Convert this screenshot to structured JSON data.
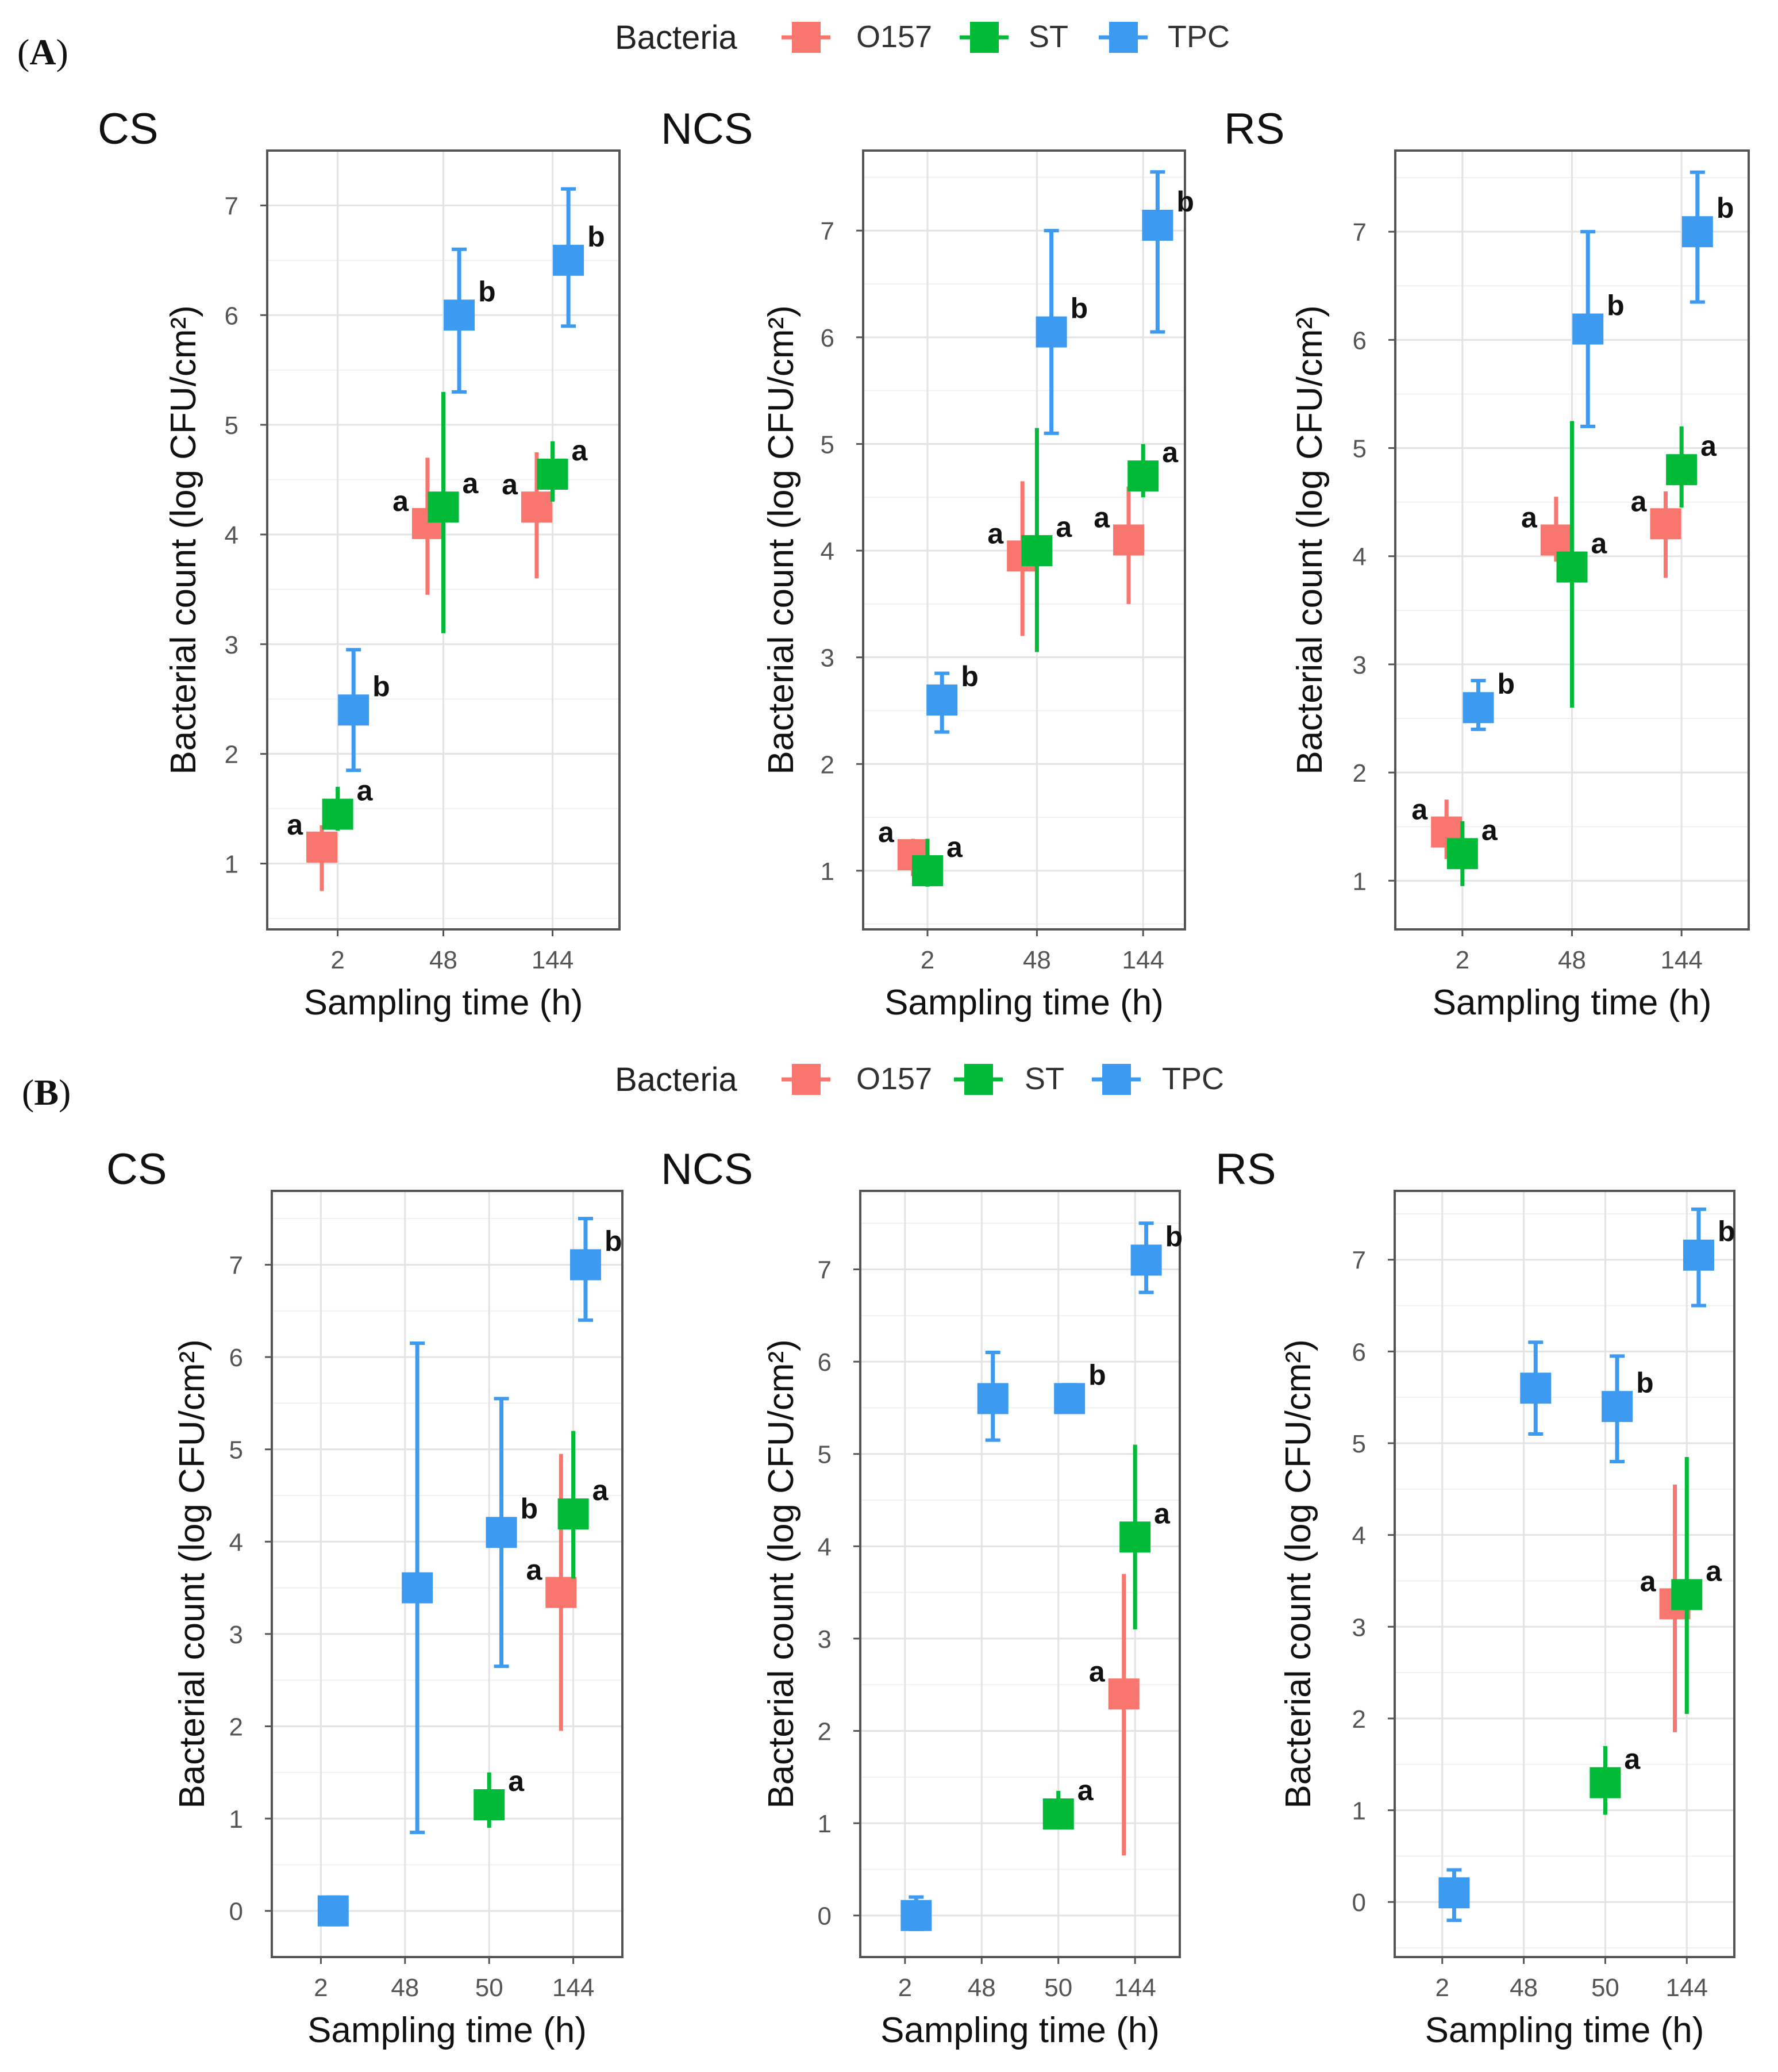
{
  "colors": {
    "O157": "#F8766D",
    "ST": "#00BA38",
    "TPC": "#3C9BF0"
  },
  "panels": [
    {
      "label": "A",
      "legend": {
        "title": "Bacteria",
        "entries": [
          "O157",
          "ST",
          "TPC"
        ]
      }
    },
    {
      "label": "B",
      "legend": {
        "title": "Bacteria",
        "entries": [
          "O157",
          "ST",
          "TPC"
        ]
      }
    }
  ],
  "chart_data": [
    {
      "type": "scatter",
      "panel": "A",
      "title": "CS",
      "xlabel": "Sampling time (h)",
      "ylabel": "Bacterial count (log CFU/cm²)",
      "categories": [
        "2",
        "48",
        "144"
      ],
      "ylim": [
        0.4,
        7.5
      ],
      "yticks": [
        1,
        2,
        3,
        4,
        5,
        6,
        7
      ],
      "series": [
        {
          "name": "O157",
          "points": [
            {
              "x": "2",
              "y": 1.15,
              "lo": 0.75,
              "hi": 1.35,
              "label": "a"
            },
            {
              "x": "48",
              "y": 4.1,
              "lo": 3.45,
              "hi": 4.7,
              "label": "a"
            },
            {
              "x": "144",
              "y": 4.25,
              "lo": 3.6,
              "hi": 4.75,
              "label": "a"
            }
          ]
        },
        {
          "name": "ST",
          "points": [
            {
              "x": "2",
              "y": 1.45,
              "lo": 1.3,
              "hi": 1.7,
              "label": "a"
            },
            {
              "x": "48",
              "y": 4.25,
              "lo": 3.1,
              "hi": 5.3,
              "label": "a"
            },
            {
              "x": "144",
              "y": 4.55,
              "lo": 4.3,
              "hi": 4.85,
              "label": "a"
            }
          ]
        },
        {
          "name": "TPC",
          "points": [
            {
              "x": "2",
              "y": 2.4,
              "lo": 1.85,
              "hi": 2.95,
              "label": "b"
            },
            {
              "x": "48",
              "y": 6.0,
              "lo": 5.3,
              "hi": 6.6,
              "label": "b"
            },
            {
              "x": "144",
              "y": 6.5,
              "lo": 5.9,
              "hi": 7.15,
              "label": "b"
            }
          ]
        }
      ]
    },
    {
      "type": "scatter",
      "panel": "A",
      "title": "NCS",
      "xlabel": "Sampling time (h)",
      "ylabel": "Bacterial count (log CFU/cm²)",
      "categories": [
        "2",
        "48",
        "144"
      ],
      "ylim": [
        0.45,
        7.75
      ],
      "yticks": [
        1,
        2,
        3,
        4,
        5,
        6,
        7
      ],
      "series": [
        {
          "name": "O157",
          "points": [
            {
              "x": "2",
              "y": 1.15,
              "lo": 0.95,
              "hi": 1.3,
              "label": "a"
            },
            {
              "x": "48",
              "y": 3.95,
              "lo": 3.2,
              "hi": 4.65,
              "label": "a"
            },
            {
              "x": "144",
              "y": 4.1,
              "lo": 3.5,
              "hi": 4.6,
              "label": "a"
            }
          ]
        },
        {
          "name": "ST",
          "points": [
            {
              "x": "2",
              "y": 1.0,
              "lo": 0.85,
              "hi": 1.3,
              "label": "a"
            },
            {
              "x": "48",
              "y": 4.0,
              "lo": 3.05,
              "hi": 5.15,
              "label": "a"
            },
            {
              "x": "144",
              "y": 4.7,
              "lo": 4.5,
              "hi": 5.0,
              "label": "a"
            }
          ]
        },
        {
          "name": "TPC",
          "points": [
            {
              "x": "2",
              "y": 2.6,
              "lo": 2.3,
              "hi": 2.85,
              "label": "b"
            },
            {
              "x": "48",
              "y": 6.05,
              "lo": 5.1,
              "hi": 7.0,
              "label": "b"
            },
            {
              "x": "144",
              "y": 7.05,
              "lo": 6.05,
              "hi": 7.55,
              "label": "b"
            }
          ]
        }
      ]
    },
    {
      "type": "scatter",
      "panel": "A",
      "title": "RS",
      "xlabel": "Sampling time (h)",
      "ylabel": "Bacterial count (log CFU/cm²)",
      "categories": [
        "2",
        "48",
        "144"
      ],
      "ylim": [
        0.55,
        7.75
      ],
      "yticks": [
        1,
        2,
        3,
        4,
        5,
        6,
        7
      ],
      "series": [
        {
          "name": "O157",
          "points": [
            {
              "x": "2",
              "y": 1.45,
              "lo": 1.2,
              "hi": 1.75,
              "label": "a"
            },
            {
              "x": "48",
              "y": 4.15,
              "lo": 3.95,
              "hi": 4.55,
              "label": "a"
            },
            {
              "x": "144",
              "y": 4.3,
              "lo": 3.8,
              "hi": 4.6,
              "label": "a"
            }
          ]
        },
        {
          "name": "ST",
          "points": [
            {
              "x": "2",
              "y": 1.25,
              "lo": 0.95,
              "hi": 1.55,
              "label": "a"
            },
            {
              "x": "48",
              "y": 3.9,
              "lo": 2.6,
              "hi": 5.25,
              "label": "a"
            },
            {
              "x": "144",
              "y": 4.8,
              "lo": 4.45,
              "hi": 5.2,
              "label": "a"
            }
          ]
        },
        {
          "name": "TPC",
          "points": [
            {
              "x": "2",
              "y": 2.6,
              "lo": 2.4,
              "hi": 2.85,
              "label": "b"
            },
            {
              "x": "48",
              "y": 6.1,
              "lo": 5.2,
              "hi": 7.0,
              "label": "b"
            },
            {
              "x": "144",
              "y": 7.0,
              "lo": 6.35,
              "hi": 7.55,
              "label": "b"
            }
          ]
        }
      ]
    },
    {
      "type": "scatter",
      "panel": "B",
      "title": "CS",
      "xlabel": "Sampling time (h)",
      "ylabel": "Bacterial count (log CFU/cm²)",
      "categories": [
        "2",
        "48",
        "50",
        "144"
      ],
      "ylim": [
        -0.5,
        7.8
      ],
      "yticks": [
        0,
        1,
        2,
        3,
        4,
        5,
        6,
        7
      ],
      "series": [
        {
          "name": "O157",
          "points": [
            {
              "x": "144",
              "y": 3.45,
              "lo": 1.95,
              "hi": 4.95,
              "label": "a"
            }
          ]
        },
        {
          "name": "ST",
          "points": [
            {
              "x": "50",
              "y": 1.15,
              "lo": 0.9,
              "hi": 1.5,
              "label": "a"
            },
            {
              "x": "144",
              "y": 4.3,
              "lo": 3.6,
              "hi": 5.2,
              "label": "a"
            }
          ]
        },
        {
          "name": "TPC",
          "points": [
            {
              "x": "2",
              "y": 0.0,
              "lo": -0.15,
              "hi": 0.15,
              "label": ""
            },
            {
              "x": "48",
              "y": 3.5,
              "lo": 0.85,
              "hi": 6.15,
              "label": ""
            },
            {
              "x": "50",
              "y": 4.1,
              "lo": 2.65,
              "hi": 5.55,
              "label": "b"
            },
            {
              "x": "144",
              "y": 7.0,
              "lo": 6.4,
              "hi": 7.5,
              "label": "b"
            }
          ]
        }
      ]
    },
    {
      "type": "scatter",
      "panel": "B",
      "title": "NCS",
      "xlabel": "Sampling time (h)",
      "ylabel": "Bacterial count (log CFU/cm²)",
      "categories": [
        "2",
        "48",
        "50",
        "144"
      ],
      "ylim": [
        -0.45,
        7.85
      ],
      "yticks": [
        0,
        1,
        2,
        3,
        4,
        5,
        6,
        7
      ],
      "series": [
        {
          "name": "O157",
          "points": [
            {
              "x": "144",
              "y": 2.4,
              "lo": 0.65,
              "hi": 3.7,
              "label": "a"
            }
          ]
        },
        {
          "name": "ST",
          "points": [
            {
              "x": "50",
              "y": 1.1,
              "lo": 0.95,
              "hi": 1.35,
              "label": "a"
            },
            {
              "x": "144",
              "y": 4.1,
              "lo": 3.1,
              "hi": 5.1,
              "label": "a"
            }
          ]
        },
        {
          "name": "TPC",
          "points": [
            {
              "x": "2",
              "y": 0.0,
              "lo": -0.15,
              "hi": 0.2,
              "label": ""
            },
            {
              "x": "48",
              "y": 5.6,
              "lo": 5.15,
              "hi": 6.1,
              "label": ""
            },
            {
              "x": "50",
              "y": 5.6,
              "lo": 5.5,
              "hi": 5.75,
              "label": "b"
            },
            {
              "x": "144",
              "y": 7.1,
              "lo": 6.75,
              "hi": 7.5,
              "label": "b"
            }
          ]
        }
      ]
    },
    {
      "type": "scatter",
      "panel": "B",
      "title": "RS",
      "xlabel": "Sampling time (h)",
      "ylabel": "Bacterial count (log CFU/cm²)",
      "categories": [
        "2",
        "48",
        "50",
        "144"
      ],
      "ylim": [
        -0.6,
        7.75
      ],
      "yticks": [
        0,
        1,
        2,
        3,
        4,
        5,
        6,
        7
      ],
      "series": [
        {
          "name": "O157",
          "points": [
            {
              "x": "144",
              "y": 3.25,
              "lo": 1.85,
              "hi": 4.55,
              "label": "a"
            }
          ]
        },
        {
          "name": "ST",
          "points": [
            {
              "x": "50",
              "y": 1.3,
              "lo": 0.95,
              "hi": 1.7,
              "label": "a"
            },
            {
              "x": "144",
              "y": 3.35,
              "lo": 2.05,
              "hi": 4.85,
              "label": "a"
            }
          ]
        },
        {
          "name": "TPC",
          "points": [
            {
              "x": "2",
              "y": 0.1,
              "lo": -0.2,
              "hi": 0.35,
              "label": ""
            },
            {
              "x": "48",
              "y": 5.6,
              "lo": 5.1,
              "hi": 6.1,
              "label": ""
            },
            {
              "x": "50",
              "y": 5.4,
              "lo": 4.8,
              "hi": 5.95,
              "label": "b"
            },
            {
              "x": "144",
              "y": 7.05,
              "lo": 6.5,
              "hi": 7.55,
              "label": "b"
            }
          ]
        }
      ]
    }
  ]
}
